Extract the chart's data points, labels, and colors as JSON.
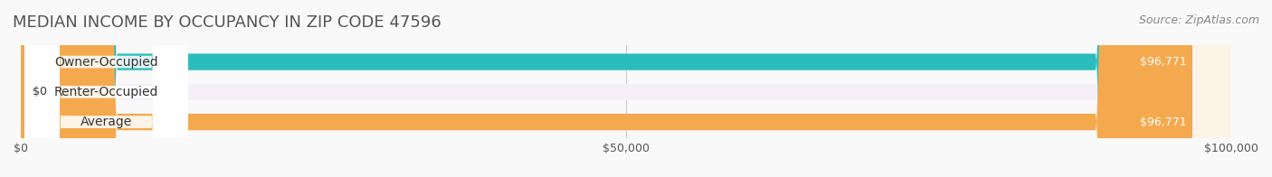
{
  "title": "MEDIAN INCOME BY OCCUPANCY IN ZIP CODE 47596",
  "source": "Source: ZipAtlas.com",
  "categories": [
    "Owner-Occupied",
    "Renter-Occupied",
    "Average"
  ],
  "values": [
    96771,
    0,
    96771
  ],
  "bar_colors": [
    "#2bbcbc",
    "#c9a8d4",
    "#f5a94e"
  ],
  "bar_bg_colors": [
    "#e8f8f8",
    "#f5f0f8",
    "#fdf3e6"
  ],
  "value_labels": [
    "$96,771",
    "$0",
    "$96,771"
  ],
  "xlim": [
    0,
    100000
  ],
  "xtick_values": [
    0,
    50000,
    100000
  ],
  "xtick_labels": [
    "$0",
    "$50,000",
    "$100,000"
  ],
  "background_color": "#f9f9f9",
  "title_fontsize": 13,
  "source_fontsize": 9,
  "label_fontsize": 10,
  "value_fontsize": 9
}
